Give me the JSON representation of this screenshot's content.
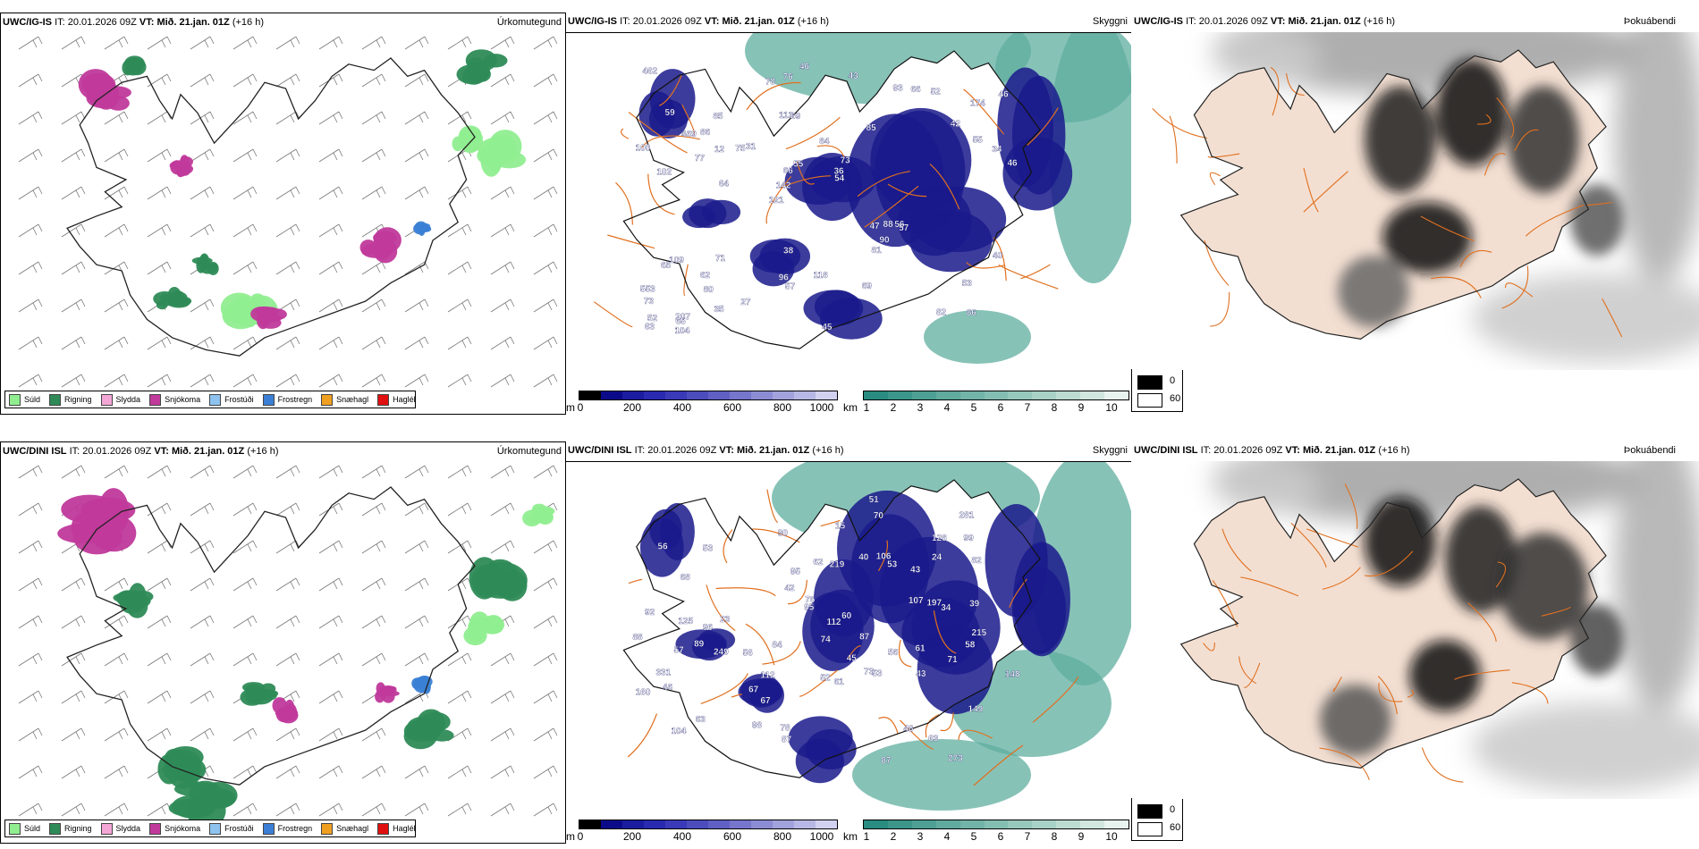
{
  "rows": [
    {
      "model": "UWC/IG-IS",
      "it_label": "IT:",
      "it_value": "20.01.2026 09Z",
      "vt_label": "VT:",
      "vt_value": "Mið. 21.jan. 01Z",
      "lead": "(+16 h)",
      "panels": [
        {
          "title": "Úrkomutegund"
        },
        {
          "title": "Skyggni"
        },
        {
          "title": "Þokuábendi"
        }
      ],
      "visibility_labels": [
        "86",
        "102",
        "174",
        "121",
        "85",
        "207",
        "113",
        "84",
        "109",
        "31",
        "73",
        "80",
        "69",
        "73",
        "57",
        "59",
        "76",
        "46",
        "47",
        "55",
        "142",
        "96",
        "66",
        "85",
        "93",
        "71",
        "82",
        "53",
        "56",
        "45",
        "75",
        "77",
        "81",
        "35",
        "34",
        "36",
        "52",
        "57",
        "54",
        "65",
        "42",
        "46",
        "90",
        "69",
        "62",
        "104",
        "63",
        "118",
        "52",
        "46",
        "64",
        "100",
        "86",
        "66",
        "65",
        "43",
        "78",
        "55",
        "40",
        "38",
        "27",
        "88",
        "12",
        "553",
        "462",
        "469"
      ],
      "cloud_counts": []
    },
    {
      "model": "UWC/DINI ISL",
      "it_label": "IT:",
      "it_value": "20.01.2026 09Z",
      "vt_label": "VT:",
      "vt_value": "Mið. 21.jan. 01Z",
      "lead": "(+16 h)",
      "panels": [
        {
          "title": "Úrkomutegund"
        },
        {
          "title": "Skyggni"
        },
        {
          "title": "Þokuábendi"
        }
      ],
      "visibility_labels": [
        "273",
        "89",
        "73",
        "56",
        "149",
        "68",
        "63",
        "56",
        "43",
        "62",
        "53",
        "63",
        "67",
        "90",
        "87",
        "46",
        "61",
        "112",
        "92",
        "104",
        "281",
        "219",
        "197",
        "148",
        "215",
        "125",
        "249",
        "74",
        "95",
        "99",
        "53",
        "57",
        "67",
        "106",
        "95",
        "71",
        "58",
        "48",
        "128",
        "87",
        "112",
        "61",
        "98",
        "51",
        "84",
        "96",
        "82",
        "70",
        "40",
        "52",
        "56",
        "39",
        "43",
        "34",
        "42",
        "88",
        "87",
        "76",
        "45",
        "107",
        "78",
        "24",
        "53",
        "15",
        "160",
        "331",
        "23",
        "60"
      ]
    }
  ],
  "precip_legend": [
    {
      "label": "Súld",
      "color": "#90ee90"
    },
    {
      "label": "Rigning",
      "color": "#2e8b57"
    },
    {
      "label": "Slydda",
      "color": "#f4a6d7"
    },
    {
      "label": "Snjókoma",
      "color": "#c0399b"
    },
    {
      "label": "Frostúði",
      "color": "#8ec3f0"
    },
    {
      "label": "Frostregn",
      "color": "#3a7fd5"
    },
    {
      "label": "Snæhagl",
      "color": "#f0a020"
    },
    {
      "label": "Haglél",
      "color": "#e01010"
    }
  ],
  "cloudbase_scale": {
    "unit": "m",
    "ticks": [
      "0",
      "200",
      "400",
      "600",
      "800",
      "1000"
    ],
    "colors": [
      "#000000",
      "#0b0b8a",
      "#1c1ca0",
      "#2a2ab0",
      "#3a3ab8",
      "#4c4cbd",
      "#6060c4",
      "#7676cc",
      "#8c8cd4",
      "#a2a2dc",
      "#b8b8e6",
      "#d2d2f0"
    ]
  },
  "visibility_scale": {
    "unit": "km",
    "ticks": [
      "1",
      "2",
      "3",
      "4",
      "5",
      "6",
      "7",
      "8",
      "9",
      "10"
    ],
    "colors": [
      "#2a8c80",
      "#3c968a",
      "#4ea094",
      "#60aa9e",
      "#72b4a8",
      "#84beb2",
      "#96c8bc",
      "#a8d2c6",
      "#bcdcd2",
      "#d0e6de",
      "#e8f2ee"
    ]
  },
  "fog_scale": {
    "labels": [
      "0",
      "60"
    ],
    "colors": [
      "#000000",
      "#ffffff"
    ]
  },
  "colors": {
    "road": "#e0701f",
    "fog_land": "#f3dfd2",
    "sea_teal": "#5fae9f",
    "cloud_blue": "#1a1a8c"
  }
}
